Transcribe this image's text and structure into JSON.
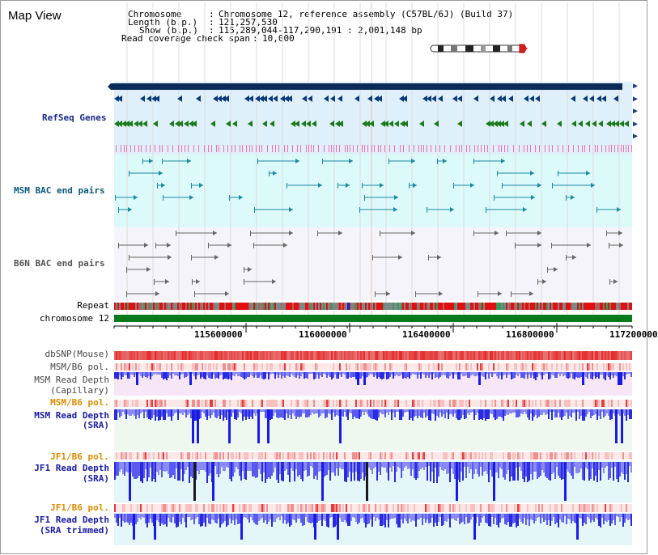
{
  "page": {
    "title": "Map View"
  },
  "info": {
    "chromosome_label": "Chromosome",
    "chromosome_value": "Chromosome 12, reference assembly (C57BL/6J) (Build 37)",
    "length_label": "Length (b.p.)",
    "length_value": "121,257,530",
    "show_label": "Show (b.p.)",
    "show_value": "115,289,044-117,290,191 : 2,001,148 bp",
    "coverage_label": "Read coverage check span",
    "coverage_value": "10,000"
  },
  "tracks": {
    "refseq": "RefSeq Genes",
    "msm_bac": "MSM BAC end pairs",
    "b6n_bac": "B6N BAC end pairs",
    "repeat": "Repeat",
    "chromosome": "chromosome 12",
    "dbsnp": "dbSNP(Mouse)",
    "msm_b6_pol_1": "MSM/B6 pol.",
    "msm_depth_cap_1": "MSM Read Depth",
    "msm_depth_cap_2": "(Capillary)",
    "msm_b6_pol_2": "MSM/B6 pol.",
    "msm_depth_sra_1": "MSM Read Depth",
    "msm_depth_sra_2": "(SRA)",
    "jf1_b6_pol_1": "JF1/B6 pol.",
    "jf1_depth_sra_1": "JF1 Read Depth",
    "jf1_depth_sra_2": "(SRA)",
    "jf1_b6_pol_2": "JF1/B6 pol.",
    "jf1_depth_trim_1": "JF1 Read Depth",
    "jf1_depth_trim_2": "(SRA trimmed)"
  },
  "axis": {
    "ticks": [
      "115600000",
      "116000000",
      "116400000",
      "116800000",
      "117200000"
    ]
  },
  "colors": {
    "refseq_label": "#1a2a8a",
    "msm_label": "#0a5a7a",
    "b6n_label": "#555555",
    "pol_label": "#e08a00",
    "depth_label": "#1a1aa8",
    "gene_green": "#1a7a1a",
    "gene_navy": "#0a2a5a",
    "chromosome_green": "#0a7a1a",
    "depth_blue": "#3838e8"
  },
  "icons": {
    "nav_arrow": "right-triangle-icon",
    "ideogram": "chromosome-ideogram-icon"
  }
}
